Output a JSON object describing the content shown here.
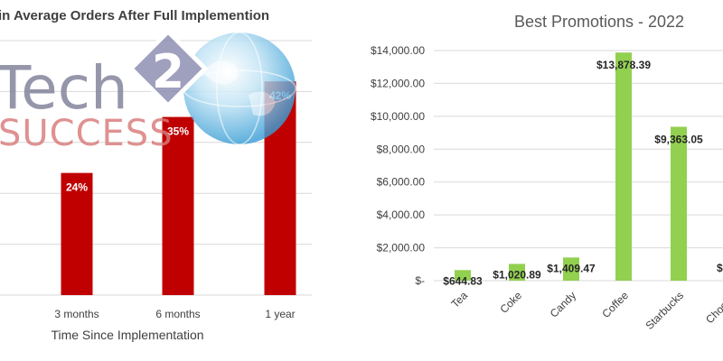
{
  "colors": {
    "left_bar": "#c00000",
    "right_bar": "#92d050",
    "grid": "#d9d9d9",
    "text": "#404040",
    "logo_tech": "#7f7f99",
    "logo_success": "#d98080"
  },
  "logo": {
    "word1": "Tech",
    "digit": "2",
    "word2": "SUCCESS",
    "icon": "globe-icon"
  },
  "chart_data": [
    {
      "type": "bar",
      "title": "in Average Orders After Full Implemention",
      "xlabel": "Time Since Implementation",
      "ylabel": "",
      "categories": [
        "3 months",
        "6 months",
        "1 year"
      ],
      "values": [
        24,
        35,
        42
      ],
      "data_labels": [
        "24%",
        "35%",
        "42%"
      ],
      "ylim": [
        0,
        50
      ],
      "grid": true,
      "color": "#c00000"
    },
    {
      "type": "bar",
      "title": "Best Promotions - 2022",
      "xlabel": "",
      "ylabel": "",
      "categories": [
        "Tea",
        "Coke",
        "Candy",
        "Coffee",
        "Starbucks",
        "Chocola"
      ],
      "values": [
        644.83,
        1020.89,
        1409.47,
        13878.39,
        9363.05,
        null
      ],
      "data_labels": [
        "$644.83",
        "$1,020.89",
        "$1,409.47",
        "$13,878.39",
        "$9,363.05",
        "$"
      ],
      "y_ticks": [
        0,
        2000,
        4000,
        6000,
        8000,
        10000,
        12000,
        14000
      ],
      "y_tick_labels": [
        "$-",
        "$2,000.00",
        "$4,000.00",
        "$6,000.00",
        "$8,000.00",
        "$10,000.00",
        "$12,000.00",
        "$14,000.00"
      ],
      "ylim": [
        0,
        15000
      ],
      "grid": true,
      "color": "#92d050"
    }
  ]
}
